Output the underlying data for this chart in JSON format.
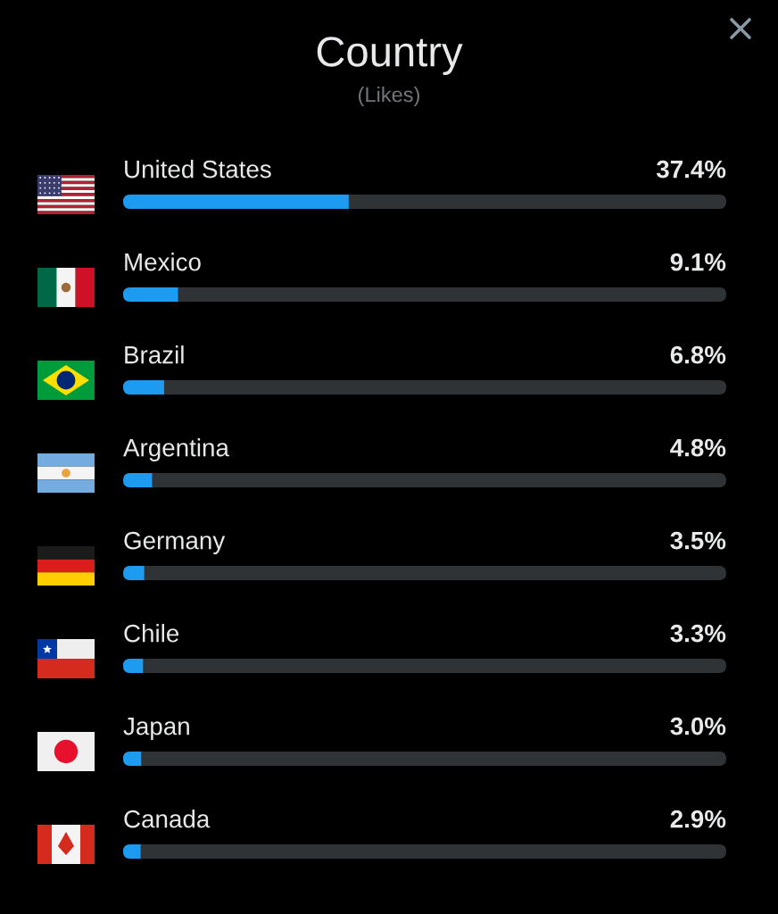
{
  "chart_data": {
    "type": "bar",
    "orientation": "horizontal",
    "title": "Country",
    "subtitle": "(Likes)",
    "categories": [
      "United States",
      "Mexico",
      "Brazil",
      "Argentina",
      "Germany",
      "Chile",
      "Japan",
      "Canada"
    ],
    "values": [
      37.4,
      9.1,
      6.8,
      4.8,
      3.5,
      3.3,
      3.0,
      2.9
    ],
    "value_labels": [
      "37.4%",
      "9.1%",
      "6.8%",
      "4.8%",
      "3.5%",
      "3.3%",
      "3.0%",
      "2.9%"
    ],
    "color": "#1d9bf0",
    "xlim": [
      0,
      100
    ],
    "tick_labels": "y"
  }
}
